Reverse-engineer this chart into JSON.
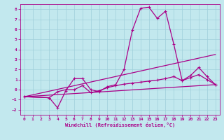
{
  "xlabel": "Windchill (Refroidissement éolien,°C)",
  "xlim": [
    -0.5,
    23.5
  ],
  "ylim": [
    -2.5,
    8.5
  ],
  "xticks": [
    0,
    1,
    2,
    3,
    4,
    5,
    6,
    7,
    8,
    9,
    10,
    11,
    12,
    13,
    14,
    15,
    16,
    17,
    18,
    19,
    20,
    21,
    22,
    23
  ],
  "yticks": [
    -2,
    -1,
    0,
    1,
    2,
    3,
    4,
    5,
    6,
    7,
    8
  ],
  "background_color": "#c2e8ee",
  "grid_color": "#9fcfda",
  "line_color": "#aa0088",
  "lines": [
    {
      "x": [
        0,
        3,
        4,
        5,
        6,
        7,
        8,
        9,
        10,
        11,
        12,
        13,
        14,
        15,
        16,
        17,
        18,
        19,
        20,
        21,
        22,
        23
      ],
      "y": [
        -0.7,
        -0.8,
        -1.8,
        -0.1,
        1.1,
        1.1,
        0.0,
        -0.2,
        0.3,
        0.5,
        2.0,
        5.9,
        8.1,
        8.2,
        7.1,
        7.8,
        4.5,
        0.9,
        1.4,
        2.2,
        1.3,
        0.5
      ],
      "marker": true
    },
    {
      "x": [
        0,
        3,
        4,
        5,
        6,
        7,
        8,
        9,
        10,
        11,
        12,
        13,
        14,
        15,
        16,
        17,
        18,
        19,
        20,
        21,
        22,
        23
      ],
      "y": [
        -0.7,
        -0.8,
        -0.2,
        0.0,
        0.0,
        0.4,
        -0.3,
        -0.1,
        0.2,
        0.4,
        0.55,
        0.65,
        0.75,
        0.85,
        0.95,
        1.1,
        1.3,
        0.9,
        1.2,
        1.5,
        1.0,
        0.5
      ],
      "marker": true
    },
    {
      "x": [
        0,
        23
      ],
      "y": [
        -0.7,
        3.5
      ],
      "marker": false
    },
    {
      "x": [
        0,
        23
      ],
      "y": [
        -0.7,
        0.5
      ],
      "marker": false
    }
  ]
}
